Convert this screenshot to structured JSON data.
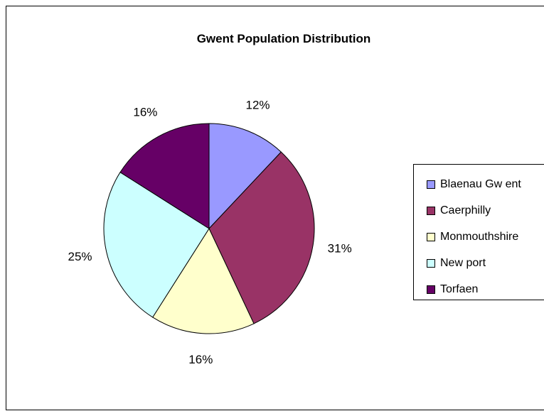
{
  "chart_data": {
    "type": "pie",
    "title": "Gwent Population Distribution",
    "categories": [
      "Blaenau Gwent",
      "Caerphilly",
      "Monmouthshire",
      "Newport",
      "Torfaen"
    ],
    "values": [
      12,
      31,
      16,
      25,
      16
    ],
    "labels": [
      "12%",
      "31%",
      "16%",
      "25%",
      "16%"
    ],
    "legend_labels": [
      "Blaenau Gw ent",
      "Caerphilly",
      "Monmouthshire",
      "New port",
      "Torfaen"
    ],
    "colors": [
      "#9999ff",
      "#993366",
      "#ffffcc",
      "#ccffff",
      "#660066"
    ],
    "legend_position": "right",
    "start_angle": "12 o'clock",
    "direction": "clockwise"
  }
}
